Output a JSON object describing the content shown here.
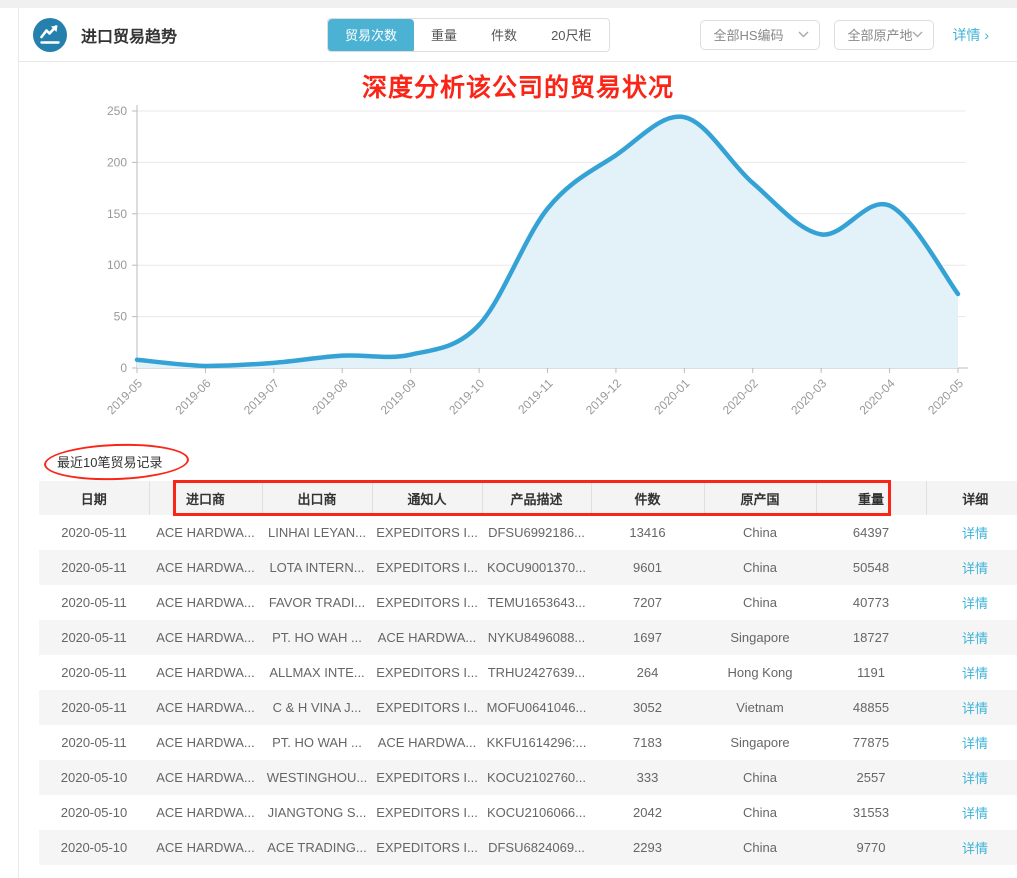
{
  "colors": {
    "accent": "#4cb2d4",
    "icon_circle": "#2580ad",
    "link": "#3eb3d8",
    "annotation": "#fb2517",
    "line": "#35a2d6",
    "fill": "#e3f1f9"
  },
  "header": {
    "title": "进口贸易趋势",
    "metric_tabs": [
      {
        "label": "贸易次数",
        "active": true
      },
      {
        "label": "重量",
        "active": false
      },
      {
        "label": "件数",
        "active": false
      },
      {
        "label": "20尺柜",
        "active": false
      }
    ],
    "hs_filter": "全部HS编码",
    "origin_filter": "全部原产地",
    "details_label": "详情",
    "details_arrow": "›"
  },
  "annotations": {
    "chart_title": "深度分析该公司的贸易状况"
  },
  "chart_data": {
    "type": "area",
    "x": [
      "2019-05",
      "2019-06",
      "2019-07",
      "2019-08",
      "2019-09",
      "2019-10",
      "2019-11",
      "2019-12",
      "2020-01",
      "2020-02",
      "2020-03",
      "2020-04",
      "2020-05"
    ],
    "series": [
      {
        "name": "贸易次数",
        "values": [
          8,
          2,
          5,
          12,
          13,
          42,
          155,
          207,
          244,
          180,
          130,
          158,
          72
        ]
      }
    ],
    "title": "",
    "xlabel": "",
    "ylabel": "",
    "ylim": [
      0,
      250
    ],
    "yticks": [
      0,
      50,
      100,
      150,
      200,
      250
    ],
    "grid": true,
    "legend": "none"
  },
  "table": {
    "caption": "最近10笔贸易记录",
    "columns": [
      "日期",
      "进口商",
      "出口商",
      "通知人",
      "产品描述",
      "件数",
      "原产国",
      "重量",
      "详细"
    ],
    "detail_label": "详情",
    "rows": [
      [
        "2020-05-11",
        "ACE HARDWA...",
        "LINHAI LEYAN...",
        "EXPEDITORS I...",
        "DFSU6992186...",
        "13416",
        "China",
        "64397"
      ],
      [
        "2020-05-11",
        "ACE HARDWA...",
        "LOTA INTERN...",
        "EXPEDITORS I...",
        "KOCU9001370...",
        "9601",
        "China",
        "50548"
      ],
      [
        "2020-05-11",
        "ACE HARDWA...",
        "FAVOR TRADI...",
        "EXPEDITORS I...",
        "TEMU1653643...",
        "7207",
        "China",
        "40773"
      ],
      [
        "2020-05-11",
        "ACE HARDWA...",
        "PT. HO WAH ...",
        "ACE HARDWA...",
        "NYKU8496088...",
        "1697",
        "Singapore",
        "18727"
      ],
      [
        "2020-05-11",
        "ACE HARDWA...",
        "ALLMAX INTE...",
        "EXPEDITORS I...",
        "TRHU2427639...",
        "264",
        "Hong Kong",
        "1191"
      ],
      [
        "2020-05-11",
        "ACE HARDWA...",
        "C & H VINA J...",
        "EXPEDITORS I...",
        "MOFU0641046...",
        "3052",
        "Vietnam",
        "48855"
      ],
      [
        "2020-05-11",
        "ACE HARDWA...",
        "PT. HO WAH ...",
        "ACE HARDWA...",
        "KKFU1614296:...",
        "7183",
        "Singapore",
        "77875"
      ],
      [
        "2020-05-10",
        "ACE HARDWA...",
        "WESTINGHOU...",
        "EXPEDITORS I...",
        "KOCU2102760...",
        "333",
        "China",
        "2557"
      ],
      [
        "2020-05-10",
        "ACE HARDWA...",
        "JIANGTONG S...",
        "EXPEDITORS I...",
        "KOCU2106066...",
        "2042",
        "China",
        "31553"
      ],
      [
        "2020-05-10",
        "ACE HARDWA...",
        "ACE TRADING...",
        "EXPEDITORS I...",
        "DFSU6824069...",
        "2293",
        "China",
        "9770"
      ]
    ]
  }
}
